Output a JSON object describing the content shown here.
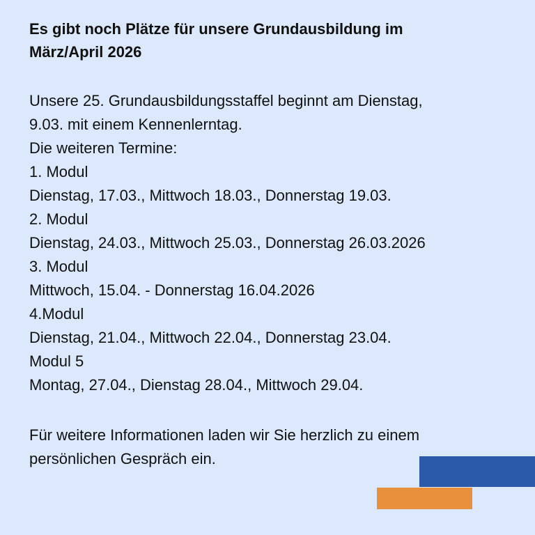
{
  "header": {
    "title": [
      "Es gibt noch Plätze für unsere Grundausbildung im",
      "März/April 2026"
    ]
  },
  "body": {
    "lines": [
      "Unsere 25. Grundausbildungsstaffel beginnt am Dienstag,",
      "9.03. mit einem Kennenlerntag.",
      "Die weiteren Termine:",
      "1. Modul",
      "Dienstag, 17.03., Mittwoch 18.03., Donnerstag 19.03.",
      "2. Modul",
      "Dienstag, 24.03., Mittwoch 25.03., Donnerstag 26.03.2026",
      "3. Modul",
      "Mittwoch, 15.04. - Donnerstag 16.04.2026",
      "4.Modul",
      "Dienstag, 21.04., Mittwoch 22.04., Donnerstag 23.04.",
      "Modul 5",
      "Montag, 27.04., Dienstag 28.04., Mittwoch 29.04."
    ]
  },
  "footer": {
    "lines": [
      "Für weitere Informationen laden wir Sie herzlich zu einem",
      "persönlichen Gespräch ein."
    ]
  }
}
